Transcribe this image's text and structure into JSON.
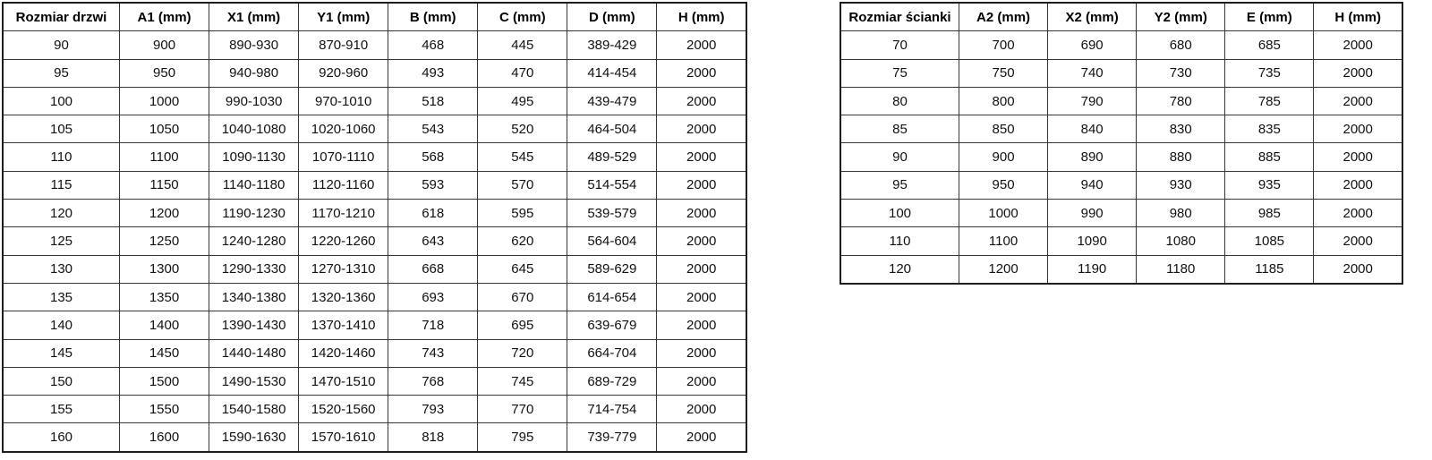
{
  "tables": {
    "doors": {
      "name": "door-size-table",
      "headers": [
        "Rozmiar drzwi",
        "A1 (mm)",
        "X1 (mm)",
        "Y1 (mm)",
        "B (mm)",
        "C (mm)",
        "D (mm)",
        "H (mm)"
      ],
      "rows": [
        [
          "90",
          "900",
          "890-930",
          "870-910",
          "468",
          "445",
          "389-429",
          "2000"
        ],
        [
          "95",
          "950",
          "940-980",
          "920-960",
          "493",
          "470",
          "414-454",
          "2000"
        ],
        [
          "100",
          "1000",
          "990-1030",
          "970-1010",
          "518",
          "495",
          "439-479",
          "2000"
        ],
        [
          "105",
          "1050",
          "1040-1080",
          "1020-1060",
          "543",
          "520",
          "464-504",
          "2000"
        ],
        [
          "110",
          "1100",
          "1090-1130",
          "1070-1110",
          "568",
          "545",
          "489-529",
          "2000"
        ],
        [
          "115",
          "1150",
          "1140-1180",
          "1120-1160",
          "593",
          "570",
          "514-554",
          "2000"
        ],
        [
          "120",
          "1200",
          "1190-1230",
          "1170-1210",
          "618",
          "595",
          "539-579",
          "2000"
        ],
        [
          "125",
          "1250",
          "1240-1280",
          "1220-1260",
          "643",
          "620",
          "564-604",
          "2000"
        ],
        [
          "130",
          "1300",
          "1290-1330",
          "1270-1310",
          "668",
          "645",
          "589-629",
          "2000"
        ],
        [
          "135",
          "1350",
          "1340-1380",
          "1320-1360",
          "693",
          "670",
          "614-654",
          "2000"
        ],
        [
          "140",
          "1400",
          "1390-1430",
          "1370-1410",
          "718",
          "695",
          "639-679",
          "2000"
        ],
        [
          "145",
          "1450",
          "1440-1480",
          "1420-1460",
          "743",
          "720",
          "664-704",
          "2000"
        ],
        [
          "150",
          "1500",
          "1490-1530",
          "1470-1510",
          "768",
          "745",
          "689-729",
          "2000"
        ],
        [
          "155",
          "1550",
          "1540-1580",
          "1520-1560",
          "793",
          "770",
          "714-754",
          "2000"
        ],
        [
          "160",
          "1600",
          "1590-1630",
          "1570-1610",
          "818",
          "795",
          "739-779",
          "2000"
        ]
      ]
    },
    "walls": {
      "name": "wall-size-table",
      "headers": [
        "Rozmiar ścianki",
        "A2 (mm)",
        "X2 (mm)",
        "Y2 (mm)",
        "E (mm)",
        "H (mm)"
      ],
      "rows": [
        [
          "70",
          "700",
          "690",
          "680",
          "685",
          "2000"
        ],
        [
          "75",
          "750",
          "740",
          "730",
          "735",
          "2000"
        ],
        [
          "80",
          "800",
          "790",
          "780",
          "785",
          "2000"
        ],
        [
          "85",
          "850",
          "840",
          "830",
          "835",
          "2000"
        ],
        [
          "90",
          "900",
          "890",
          "880",
          "885",
          "2000"
        ],
        [
          "95",
          "950",
          "940",
          "930",
          "935",
          "2000"
        ],
        [
          "100",
          "1000",
          "990",
          "980",
          "985",
          "2000"
        ],
        [
          "110",
          "1100",
          "1090",
          "1080",
          "1085",
          "2000"
        ],
        [
          "120",
          "1200",
          "1190",
          "1180",
          "1185",
          "2000"
        ]
      ]
    }
  },
  "colors": {
    "background": "#ffffff",
    "border_outer": "#1f1f1f",
    "border_inner": "#363636",
    "text": "#111111"
  }
}
